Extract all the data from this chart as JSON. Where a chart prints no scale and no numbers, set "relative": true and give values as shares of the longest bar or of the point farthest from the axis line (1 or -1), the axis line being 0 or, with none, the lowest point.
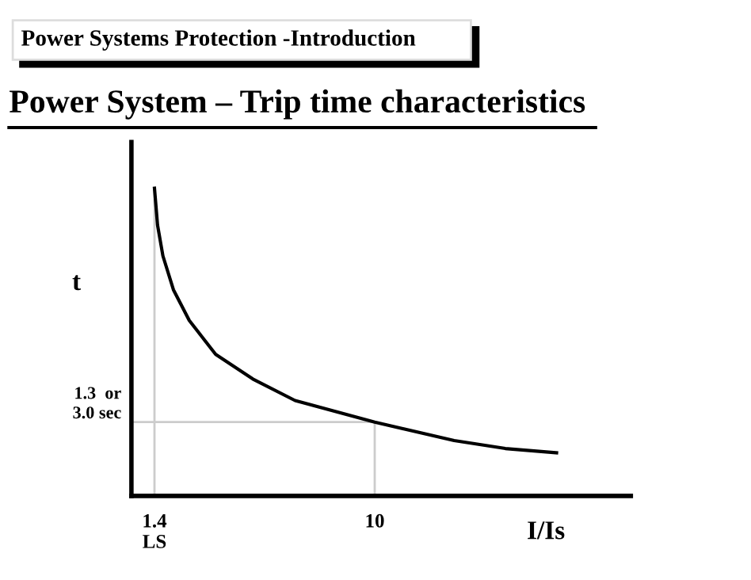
{
  "chart_data": {
    "type": "line",
    "subtitle": "Power Systems Protection -Introduction",
    "title": "Power System – Trip time characteristics",
    "xlabel": "I/Is",
    "ylabel": "t",
    "relative": true,
    "tick_labels": "x",
    "xlim": [
      0.5,
      20
    ],
    "xticks": [
      {
        "value": 1.4,
        "label": "1.4\nLS"
      },
      10
    ],
    "series": [
      {
        "color": "#000000",
        "x": [
          1.4,
          1.52,
          1.73,
          2.14,
          2.76,
          3.79,
          5.24,
          6.89,
          10.0,
          13.1,
          15.1,
          17.1
        ],
        "values": [
          1.0,
          0.88,
          0.78,
          0.67,
          0.57,
          0.46,
          0.38,
          0.31,
          0.24,
          0.18,
          0.154,
          0.14
        ]
      }
    ],
    "ref_lines": [
      {
        "axis": "x",
        "value": 1.4,
        "color": "#cccccc"
      },
      {
        "axis": "x",
        "value": 10,
        "color": "#cccccc"
      },
      {
        "axis": "y",
        "value": 0.24,
        "label": "1.3  or\n3.0 sec",
        "color": "#cccccc"
      }
    ],
    "grid": false,
    "legend": false,
    "marker": "none",
    "line_style": "solid"
  }
}
